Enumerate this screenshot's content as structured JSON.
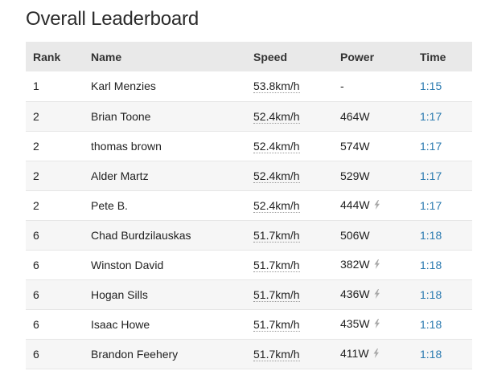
{
  "title": "Overall Leaderboard",
  "columns": {
    "rank": "Rank",
    "name": "Name",
    "speed": "Speed",
    "power": "Power",
    "time": "Time"
  },
  "rows": [
    {
      "rank": "1",
      "name": "Karl Menzies",
      "speed": "53.8km/h",
      "power": "-",
      "estimated": false,
      "time": "1:15"
    },
    {
      "rank": "2",
      "name": "Brian Toone",
      "speed": "52.4km/h",
      "power": "464W",
      "estimated": false,
      "time": "1:17"
    },
    {
      "rank": "2",
      "name": "thomas brown",
      "speed": "52.4km/h",
      "power": "574W",
      "estimated": false,
      "time": "1:17"
    },
    {
      "rank": "2",
      "name": "Alder Martz",
      "speed": "52.4km/h",
      "power": "529W",
      "estimated": false,
      "time": "1:17"
    },
    {
      "rank": "2",
      "name": "Pete B.",
      "speed": "52.4km/h",
      "power": "444W",
      "estimated": true,
      "time": "1:17"
    },
    {
      "rank": "6",
      "name": "Chad Burdzilauskas",
      "speed": "51.7km/h",
      "power": "506W",
      "estimated": false,
      "time": "1:18"
    },
    {
      "rank": "6",
      "name": "Winston David",
      "speed": "51.7km/h",
      "power": "382W",
      "estimated": true,
      "time": "1:18"
    },
    {
      "rank": "6",
      "name": "Hogan Sills",
      "speed": "51.7km/h",
      "power": "436W",
      "estimated": true,
      "time": "1:18"
    },
    {
      "rank": "6",
      "name": "Isaac Howe",
      "speed": "51.7km/h",
      "power": "435W",
      "estimated": true,
      "time": "1:18"
    },
    {
      "rank": "6",
      "name": "Brandon Feehery",
      "speed": "51.7km/h",
      "power": "411W",
      "estimated": true,
      "time": "1:18"
    }
  ],
  "icons": {
    "estimated_power": "lightning-bolt-icon"
  },
  "colors": {
    "link": "#2a7ab0",
    "header_bg": "#e9e9e9",
    "alt_row_bg": "#f6f6f6"
  }
}
